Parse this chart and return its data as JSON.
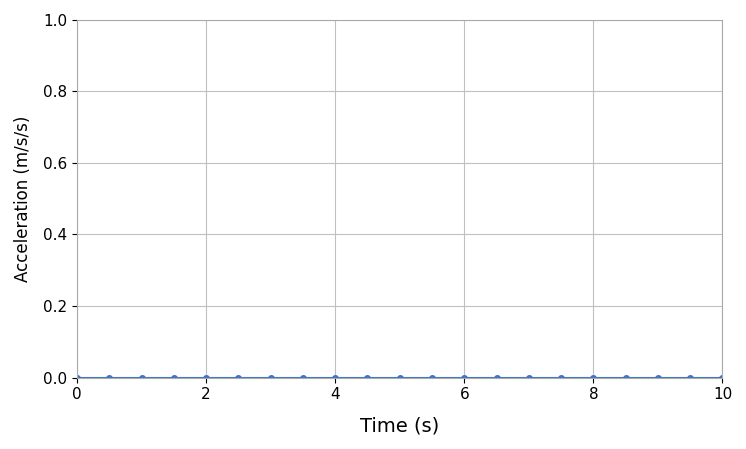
{
  "x_data": [
    0.0,
    0.5,
    1.0,
    1.5,
    2.0,
    2.5,
    3.0,
    3.5,
    4.0,
    4.5,
    5.0,
    5.5,
    6.0,
    6.5,
    7.0,
    7.5,
    8.0,
    8.5,
    9.0,
    9.5,
    10.0
  ],
  "y_data": [
    0,
    0,
    0,
    0,
    0,
    0,
    0,
    0,
    0,
    0,
    0,
    0,
    0,
    0,
    0,
    0,
    0,
    0,
    0,
    0,
    0
  ],
  "xlabel": "Time (s)",
  "ylabel": "Acceleration (m/s/s)",
  "xlim": [
    0,
    10
  ],
  "ylim": [
    0,
    1
  ],
  "yticks": [
    0,
    0.2,
    0.4,
    0.6,
    0.8,
    1.0
  ],
  "xticks": [
    0,
    2,
    4,
    6,
    8,
    10
  ],
  "line_color": "#4472C4",
  "marker": "o",
  "marker_size": 4,
  "line_width": 1.5,
  "grid": true,
  "grid_color": "#C0C0C0",
  "background_color": "#FFFFFF",
  "xlabel_fontsize": 14,
  "ylabel_fontsize": 12,
  "tick_fontsize": 11
}
